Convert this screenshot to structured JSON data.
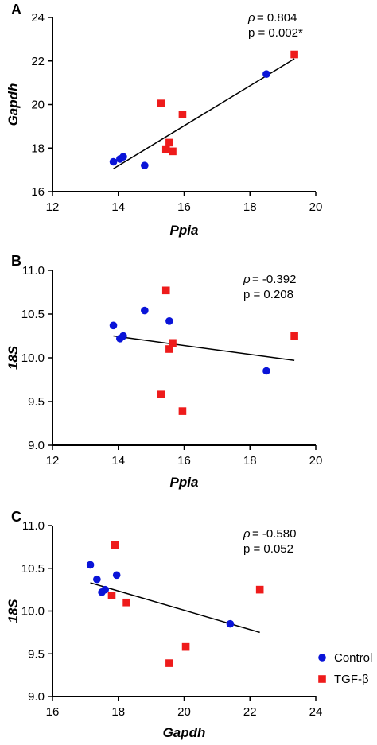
{
  "colors": {
    "control": "#0a14d8",
    "tgf": "#ee1b1b",
    "fit_line": "#000000"
  },
  "legend": {
    "items": [
      {
        "label": "Control",
        "marker": "circle",
        "color": "#0a14d8"
      },
      {
        "label": "TGF-β",
        "marker": "square",
        "color": "#ee1b1b"
      }
    ]
  },
  "chart_data": [
    {
      "type": "scatter",
      "panel": "A",
      "xlabel": "Ppia",
      "ylabel": "Gapdh",
      "xlim": [
        12,
        20
      ],
      "ylim": [
        16,
        24
      ],
      "xticks": [
        "12",
        "14",
        "16",
        "18",
        "20"
      ],
      "yticks": [
        "16",
        "18",
        "20",
        "22",
        "24"
      ],
      "stats": {
        "rho": "= 0.804",
        "p": "p = 0.002*"
      },
      "series": [
        {
          "name": "Control",
          "marker": "circle",
          "points": [
            [
              13.85,
              17.37
            ],
            [
              14.05,
              17.5
            ],
            [
              14.15,
              17.6
            ],
            [
              14.8,
              17.2
            ],
            [
              18.5,
              21.4
            ]
          ]
        },
        {
          "name": "TGF-β",
          "marker": "square",
          "points": [
            [
              15.3,
              20.05
            ],
            [
              15.45,
              17.95
            ],
            [
              15.55,
              18.25
            ],
            [
              15.65,
              17.85
            ],
            [
              15.95,
              19.55
            ],
            [
              19.35,
              22.3
            ]
          ]
        }
      ],
      "fit": [
        [
          13.85,
          17.05
        ],
        [
          19.35,
          22.1
        ]
      ]
    },
    {
      "type": "scatter",
      "panel": "B",
      "xlabel": "Ppia",
      "ylabel": "18S",
      "xlim": [
        12,
        20
      ],
      "ylim": [
        9.0,
        11.0
      ],
      "xticks": [
        "12",
        "14",
        "16",
        "18",
        "20"
      ],
      "yticks": [
        "9.0",
        "9.5",
        "10.0",
        "10.5",
        "11.0"
      ],
      "stats": {
        "rho": "= -0.392",
        "p": "p = 0.208"
      },
      "series": [
        {
          "name": "Control",
          "marker": "circle",
          "points": [
            [
              13.85,
              10.37
            ],
            [
              14.05,
              10.22
            ],
            [
              14.15,
              10.25
            ],
            [
              14.8,
              10.54
            ],
            [
              15.55,
              10.42
            ],
            [
              18.5,
              9.85
            ]
          ]
        },
        {
          "name": "TGF-β",
          "marker": "square",
          "points": [
            [
              15.3,
              9.58
            ],
            [
              15.45,
              10.77
            ],
            [
              15.55,
              10.1
            ],
            [
              15.65,
              10.17
            ],
            [
              15.95,
              9.39
            ],
            [
              19.35,
              10.25
            ]
          ]
        }
      ],
      "fit": [
        [
          13.85,
          10.25
        ],
        [
          19.35,
          9.97
        ]
      ]
    },
    {
      "type": "scatter",
      "panel": "C",
      "xlabel": "Gapdh",
      "ylabel": "18S",
      "xlim": [
        16,
        24
      ],
      "ylim": [
        9.0,
        11.0
      ],
      "xticks": [
        "16",
        "18",
        "20",
        "22",
        "24"
      ],
      "yticks": [
        "9.0",
        "9.5",
        "10.0",
        "10.5",
        "11.0"
      ],
      "stats": {
        "rho": "= -0.580",
        "p": "p = 0.052"
      },
      "series": [
        {
          "name": "Control",
          "marker": "circle",
          "points": [
            [
              17.15,
              10.54
            ],
            [
              17.35,
              10.37
            ],
            [
              17.5,
              10.22
            ],
            [
              17.6,
              10.25
            ],
            [
              17.95,
              10.42
            ],
            [
              21.4,
              9.85
            ]
          ]
        },
        {
          "name": "TGF-β",
          "marker": "square",
          "points": [
            [
              17.8,
              10.18
            ],
            [
              17.9,
              10.77
            ],
            [
              18.25,
              10.1
            ],
            [
              19.55,
              9.39
            ],
            [
              20.05,
              9.58
            ],
            [
              22.3,
              10.25
            ]
          ]
        }
      ],
      "fit": [
        [
          17.15,
          10.33
        ],
        [
          22.3,
          9.75
        ]
      ]
    }
  ]
}
